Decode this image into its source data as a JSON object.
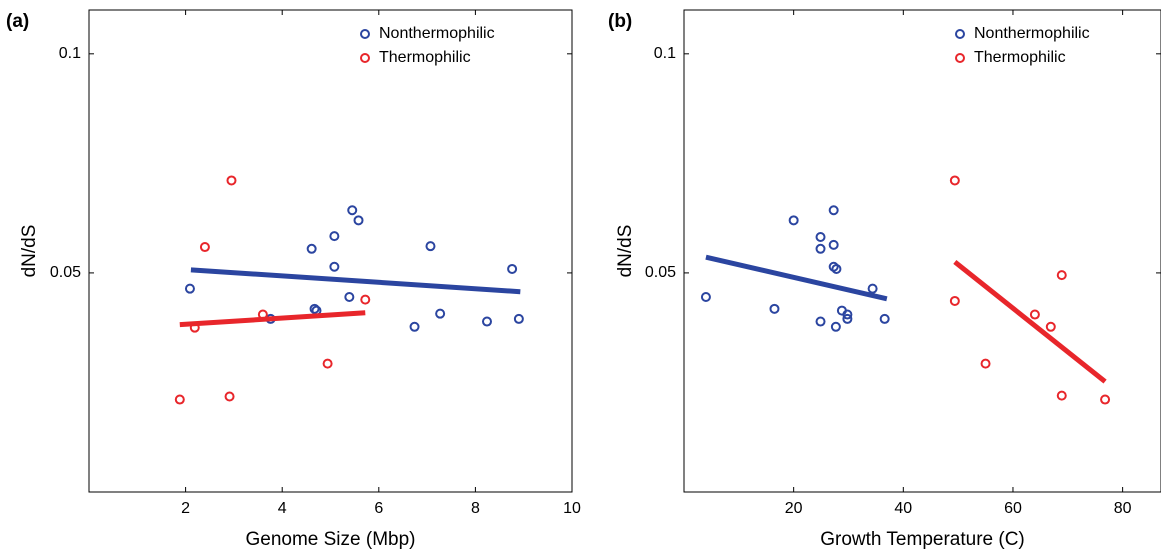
{
  "chart_data": [
    {
      "type": "scatter",
      "panel_label": "(a)",
      "x_label": "Genome Size (Mbp)",
      "y_label": "dN/dS",
      "xlim": [
        0,
        10
      ],
      "xticks": [
        2,
        4,
        6,
        8,
        10
      ],
      "ylim": [
        0,
        0.11
      ],
      "yticks": [
        0.05,
        0.1
      ],
      "grid": false,
      "legend": "upper right",
      "series": [
        {
          "name": "Nonthermophilic",
          "color": "#2b45a0",
          "x": [
            2.09,
            3.76,
            4.61,
            4.67,
            4.71,
            5.08,
            5.08,
            5.39,
            5.45,
            5.58,
            6.74,
            7.07,
            7.27,
            8.24,
            8.76,
            8.9
          ],
          "values": [
            0.0464,
            0.0395,
            0.0555,
            0.0418,
            0.0414,
            0.0584,
            0.0514,
            0.0445,
            0.0643,
            0.062,
            0.0377,
            0.0561,
            0.0407,
            0.0389,
            0.0509,
            0.0395
          ],
          "fit": {
            "x": [
              2.11,
              8.93
            ],
            "values": [
              0.0507,
              0.0457
            ]
          }
        },
        {
          "name": "Thermophilic",
          "color": "#e8262b",
          "x": [
            1.88,
            2.19,
            2.4,
            2.91,
            2.95,
            3.6,
            4.94,
            5.72
          ],
          "values": [
            0.0211,
            0.0375,
            0.0559,
            0.0218,
            0.0711,
            0.0405,
            0.0293,
            0.0439
          ],
          "fit": {
            "x": [
              1.88,
              5.72
            ],
            "values": [
              0.0382,
              0.0409
            ]
          }
        }
      ]
    },
    {
      "type": "scatter",
      "panel_label": "(b)",
      "x_label": "Growth Temperature (C)",
      "y_label": "dN/dS",
      "xlim": [
        0,
        87
      ],
      "xticks": [
        20,
        40,
        60,
        80
      ],
      "ylim": [
        0,
        0.11
      ],
      "yticks": [
        0.05,
        0.1
      ],
      "grid": false,
      "legend": "upper right",
      "series": [
        {
          "name": "Nonthermophilic",
          "color": "#2b45a0",
          "x": [
            4,
            16.5,
            20,
            24.9,
            24.9,
            24.9,
            27.3,
            27.3,
            27.3,
            27.8,
            27.7,
            28.8,
            29.8,
            29.8,
            34.4,
            36.6
          ],
          "values": [
            0.0445,
            0.0418,
            0.062,
            0.0582,
            0.0555,
            0.0389,
            0.0643,
            0.0564,
            0.0514,
            0.0509,
            0.0377,
            0.0414,
            0.0405,
            0.0395,
            0.0464,
            0.0395
          ],
          "fit": {
            "x": [
              4,
              37
            ],
            "values": [
              0.0536,
              0.0441
            ]
          }
        },
        {
          "name": "Thermophilic",
          "color": "#e8262b",
          "x": [
            49.4,
            49.4,
            55,
            64,
            66.9,
            68.9,
            68.9,
            76.8
          ],
          "values": [
            0.0711,
            0.0436,
            0.0293,
            0.0405,
            0.0377,
            0.0495,
            0.022,
            0.0211
          ],
          "fit": {
            "x": [
              49.4,
              76.8
            ],
            "values": [
              0.0525,
              0.0252
            ]
          }
        }
      ]
    }
  ]
}
